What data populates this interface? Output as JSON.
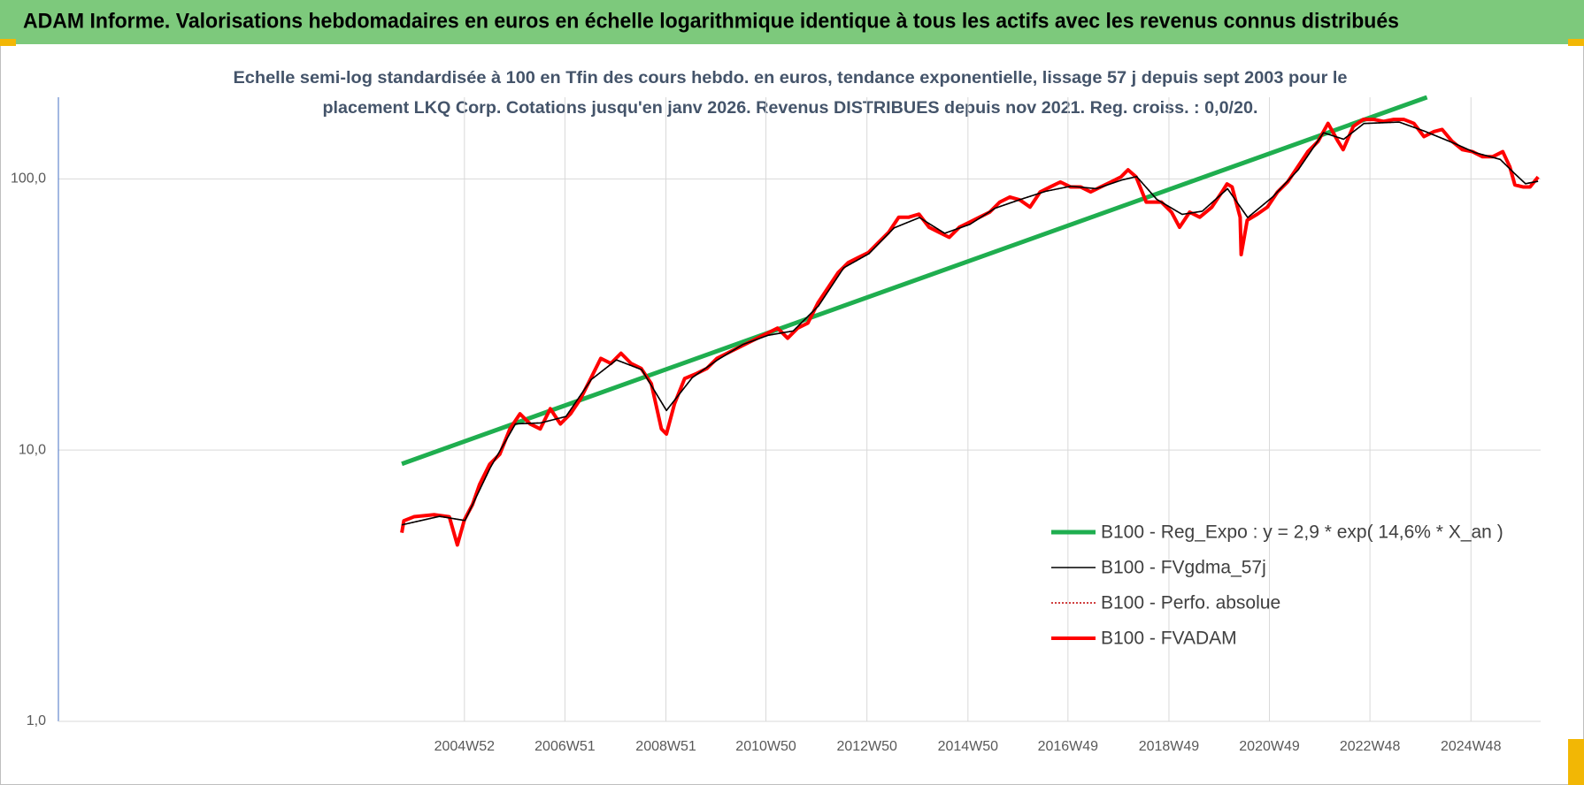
{
  "chart_data": {
    "type": "line",
    "title": "ADAM Informe. Valorisations hebdomadaires en euros en échelle logarithmique identique à tous les actifs avec les revenus connus distribués",
    "subtitle": [
      "Echelle semi-log standardisée à 100 en Tfin des cours hebdo. en euros, tendance exponentielle, lissage 57 j depuis sept 2003 pour le",
      "placement LKQ Corp. Cotations jusqu'en janv 2026. Revenus DISTRIBUES depuis nov 2021. Reg. croiss. : 0,0/20."
    ],
    "ylog": true,
    "grid": true,
    "legend": "lower right",
    "xlim": [
      1996.95,
      2026.3
    ],
    "ylim": [
      1,
      200
    ],
    "yticks": [
      {
        "value": 1,
        "label": "1,0"
      },
      {
        "value": 10,
        "label": "10,0"
      },
      {
        "value": 100,
        "label": "100,0"
      }
    ],
    "xticks": [
      {
        "value": 2004.99,
        "label": "2004W52"
      },
      {
        "value": 2006.98,
        "label": "2006W51"
      },
      {
        "value": 2008.98,
        "label": "2008W51"
      },
      {
        "value": 2010.96,
        "label": "2010W50"
      },
      {
        "value": 2012.96,
        "label": "2012W50"
      },
      {
        "value": 2014.96,
        "label": "2014W50"
      },
      {
        "value": 2016.94,
        "label": "2016W49"
      },
      {
        "value": 2018.94,
        "label": "2018W49"
      },
      {
        "value": 2020.93,
        "label": "2020W49"
      },
      {
        "value": 2022.92,
        "label": "2022W48"
      },
      {
        "value": 2024.92,
        "label": "2024W48"
      }
    ],
    "series": [
      {
        "name": "B100 - Reg_Expo : y = 2,9 * exp( 14,6% *  X_an )",
        "color": "#1fae4f",
        "width": 5,
        "dash": "none",
        "x": [
          2003.75,
          2024.05
        ],
        "values": [
          8.9,
          200
        ]
      },
      {
        "name": "B100 - FVgdma_57j",
        "color": "#000000",
        "width": 1.6,
        "dash": "none",
        "x": [
          2003.75,
          2004.5,
          2005,
          2005.5,
          2006,
          2006.5,
          2007,
          2007.5,
          2008,
          2008.5,
          2008.99,
          2009.5,
          2010,
          2010.5,
          2011,
          2011.5,
          2012,
          2012.5,
          2013,
          2013.5,
          2014,
          2014.5,
          2015,
          2015.5,
          2016,
          2016.5,
          2017,
          2017.5,
          2018,
          2018.3,
          2018.7,
          2019.2,
          2019.6,
          2020.1,
          2020.5,
          2021,
          2021.5,
          2022,
          2022.4,
          2022.8,
          2023.5,
          2024,
          2024.6,
          2025,
          2025.5,
          2025.8,
          2026,
          2026.25
        ],
        "values": [
          5.3,
          5.7,
          5.5,
          8.6,
          12.5,
          12.6,
          13.3,
          18.2,
          21.5,
          19.8,
          14,
          18.5,
          21.5,
          24.5,
          26.5,
          27.5,
          34,
          47,
          53,
          66,
          72,
          63,
          68,
          78,
          84,
          90,
          94,
          92,
          99,
          102,
          84,
          74,
          76,
          92,
          72,
          86,
          108,
          148,
          140,
          160,
          162,
          150,
          135,
          125,
          118,
          104,
          96,
          98
        ]
      },
      {
        "name": "B100 - Perfo. absolue",
        "color": "#c00000",
        "width": 1.5,
        "dash": "2,2",
        "x": [
          2003.75,
          2004.5,
          2005,
          2005.5,
          2006,
          2006.5,
          2007,
          2007.5,
          2008,
          2008.5,
          2008.99,
          2009.5,
          2010,
          2010.5,
          2011,
          2011.5,
          2012,
          2012.5,
          2013,
          2013.5,
          2014,
          2014.5,
          2015,
          2015.5,
          2016,
          2016.5,
          2017,
          2017.5,
          2018,
          2018.3,
          2018.7,
          2019.2,
          2019.6,
          2020.1,
          2020.5,
          2021,
          2021.5,
          2022,
          2022.4,
          2022.8,
          2023.5,
          2024,
          2024.6,
          2025,
          2025.5,
          2025.8,
          2026,
          2026.25
        ],
        "values": [
          5.3,
          5.7,
          5.5,
          8.6,
          12.5,
          12.6,
          13.3,
          18.2,
          21.5,
          19.8,
          14,
          18.5,
          21.5,
          24.5,
          26.5,
          27.5,
          34,
          47,
          53,
          66,
          72,
          63,
          68,
          78,
          84,
          90,
          94,
          92,
          99,
          102,
          84,
          74,
          76,
          92,
          72,
          86,
          108,
          148,
          140,
          160,
          162,
          150,
          135,
          125,
          118,
          104,
          96,
          98
        ]
      },
      {
        "name": "B100 - FVADAM",
        "color": "#ff0000",
        "width": 4,
        "dash": "none",
        "x": [
          2003.75,
          2003.79,
          2003.99,
          2004.39,
          2004.69,
          2004.85,
          2004.99,
          2005.15,
          2005.29,
          2005.49,
          2005.69,
          2005.89,
          2006.09,
          2006.29,
          2006.49,
          2006.69,
          2006.89,
          2007.09,
          2007.29,
          2007.49,
          2007.69,
          2007.89,
          2008.09,
          2008.29,
          2008.49,
          2008.69,
          2008.89,
          2008.99,
          2009.15,
          2009.35,
          2009.59,
          2009.79,
          2009.99,
          2010.19,
          2010.39,
          2010.59,
          2010.79,
          2010.99,
          2011.19,
          2011.39,
          2011.59,
          2011.79,
          2011.99,
          2012.19,
          2012.39,
          2012.59,
          2012.79,
          2012.99,
          2013.19,
          2013.39,
          2013.59,
          2013.79,
          2013.99,
          2014.19,
          2014.39,
          2014.59,
          2014.79,
          2014.99,
          2015.19,
          2015.39,
          2015.59,
          2015.79,
          2015.99,
          2016.19,
          2016.39,
          2016.59,
          2016.79,
          2016.99,
          2017.19,
          2017.39,
          2017.59,
          2017.79,
          2017.99,
          2018.13,
          2018.29,
          2018.49,
          2018.79,
          2018.99,
          2019.15,
          2019.35,
          2019.55,
          2019.79,
          2019.99,
          2020.09,
          2020.19,
          2020.35,
          2020.37,
          2020.49,
          2020.69,
          2020.89,
          2021.09,
          2021.29,
          2021.49,
          2021.69,
          2021.89,
          2022.09,
          2022.29,
          2022.39,
          2022.59,
          2022.79,
          2022.99,
          2023.19,
          2023.39,
          2023.59,
          2023.79,
          2023.99,
          2024.19,
          2024.35,
          2024.55,
          2024.75,
          2024.95,
          2025.15,
          2025.35,
          2025.55,
          2025.69,
          2025.79,
          2025.95,
          2026.09,
          2026.25
        ],
        "values": [
          4.96,
          5.49,
          5.68,
          5.78,
          5.68,
          4.47,
          5.54,
          6.3,
          7.47,
          8.87,
          9.66,
          11.97,
          13.61,
          12.49,
          11.97,
          14.21,
          12.49,
          13.61,
          15.48,
          18.36,
          21.79,
          20.87,
          22.75,
          20.87,
          20,
          17.59,
          11.97,
          11.47,
          14.83,
          18.36,
          19.17,
          20,
          21.79,
          22.75,
          23.75,
          24.78,
          25.86,
          26.99,
          28.18,
          25.86,
          28.18,
          29.41,
          34.9,
          39.69,
          45.12,
          49.14,
          51.29,
          53.54,
          58.33,
          63.53,
          72.24,
          72.24,
          74.13,
          66.33,
          63.53,
          60.87,
          66.33,
          69.21,
          72.24,
          75.4,
          82.1,
          85.7,
          83.6,
          78.7,
          89.5,
          93.4,
          97.4,
          93.4,
          93.4,
          89.5,
          93.4,
          97.4,
          101.7,
          108,
          101.7,
          82.1,
          82.1,
          75.4,
          66.33,
          75.4,
          72.24,
          78.7,
          89.5,
          95.8,
          93.4,
          72.24,
          52.6,
          70.4,
          74.13,
          78.7,
          89.5,
          97.4,
          110.8,
          126,
          137.3,
          160.2,
          137.3,
          128.2,
          156.1,
          165.7,
          165.7,
          162.9,
          165.7,
          165.7,
          160.2,
          143.2,
          149.5,
          152.1,
          137.3,
          128.2,
          126,
          120.7,
          120.7,
          126,
          110.8,
          95,
          93.4,
          93.4,
          101.7
        ]
      }
    ]
  }
}
